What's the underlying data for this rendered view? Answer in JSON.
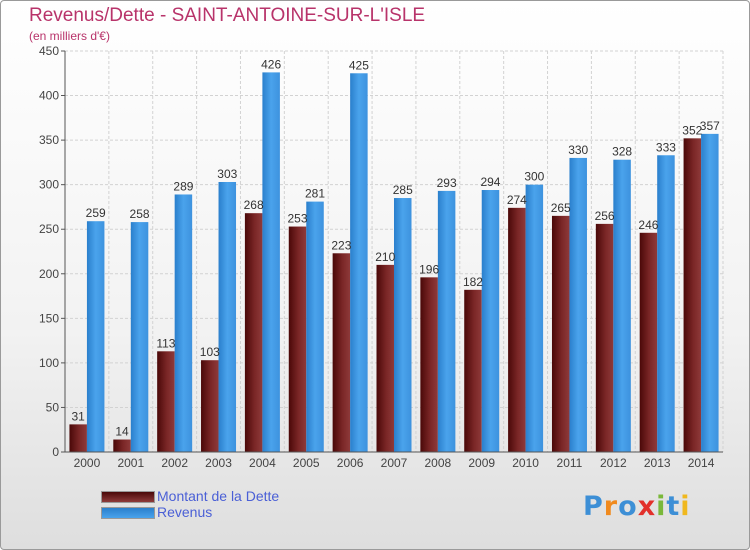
{
  "header": {
    "title": "Revenus/Dette - SAINT-ANTOINE-SUR-L'ISLE",
    "subtitle": "(en milliers d'€)"
  },
  "legend": {
    "items": [
      {
        "label": "Montant de la Dette",
        "color": "#6e1a1a"
      },
      {
        "label": "Revenus",
        "color": "#3d96e0"
      }
    ]
  },
  "logo": {
    "text": "Proxiti",
    "letters": [
      {
        "ch": "P",
        "color": "#3d8fd6"
      },
      {
        "ch": "r",
        "color": "#f08a1e"
      },
      {
        "ch": "o",
        "color": "#3d8fd6"
      },
      {
        "ch": "x",
        "color": "#e2302b"
      },
      {
        "ch": "i",
        "color": "#7ab83a"
      },
      {
        "ch": "t",
        "color": "#3d8fd6"
      },
      {
        "ch": "i",
        "color": "#f0b81e"
      }
    ]
  },
  "chart_data": {
    "type": "bar",
    "title": "Revenus/Dette - SAINT-ANTOINE-SUR-L'ISLE",
    "subtitle": "(en milliers d'€)",
    "categories": [
      "2000",
      "2001",
      "2002",
      "2003",
      "2004",
      "2005",
      "2006",
      "2007",
      "2008",
      "2009",
      "2010",
      "2011",
      "2012",
      "2013",
      "2014"
    ],
    "series": [
      {
        "name": "Montant de la Dette",
        "color": "#6e1a1a",
        "values": [
          31,
          14,
          113,
          103,
          268,
          253,
          223,
          210,
          196,
          182,
          274,
          265,
          256,
          246,
          352
        ]
      },
      {
        "name": "Revenus",
        "color": "#3d96e0",
        "values": [
          259,
          258,
          289,
          303,
          426,
          281,
          425,
          285,
          293,
          294,
          300,
          330,
          328,
          333,
          357
        ]
      }
    ],
    "ylim": [
      0,
      450
    ],
    "yticks": [
      0,
      50,
      100,
      150,
      200,
      250,
      300,
      350,
      400,
      450
    ],
    "grid": true,
    "legend": "bottom-left"
  }
}
